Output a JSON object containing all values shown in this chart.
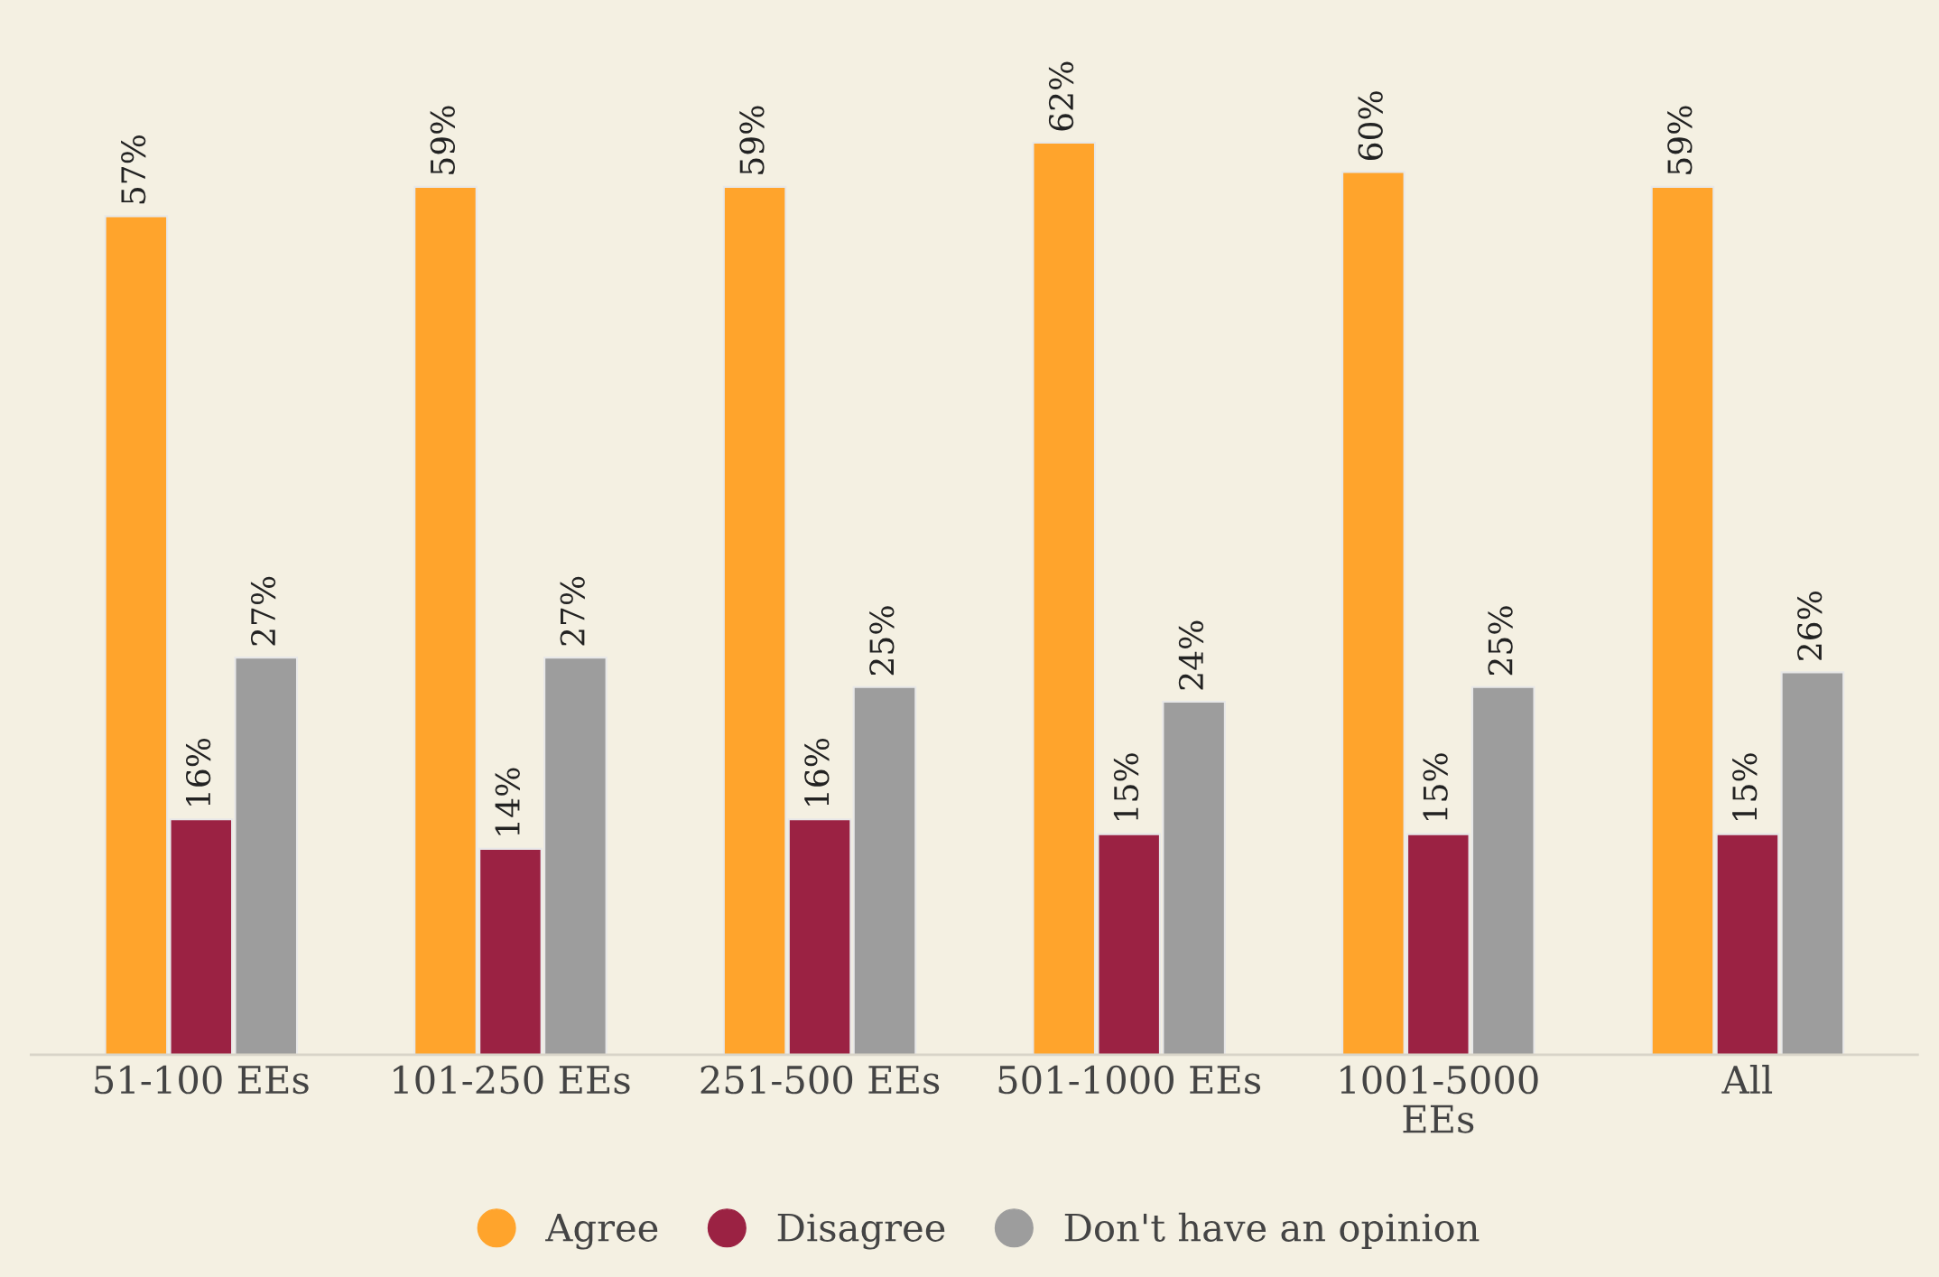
{
  "chart_data": {
    "type": "bar",
    "categories": [
      "51-100 EEs",
      "101-250 EEs",
      "251-500 EEs",
      "501-1000 EEs",
      "1001-5000\nEEs",
      "All"
    ],
    "series": [
      {
        "name": "Agree",
        "color": "#ffa42c",
        "values": [
          57,
          59,
          59,
          62,
          60,
          59
        ],
        "value_labels": [
          "57%",
          "59%",
          "59%",
          "62%",
          "60%",
          "59%"
        ]
      },
      {
        "name": "Disagree",
        "color": "#9b2243",
        "values": [
          16,
          14,
          16,
          15,
          15,
          15
        ],
        "value_labels": [
          "16%",
          "14%",
          "16%",
          "15%",
          "15%",
          "15%"
        ]
      },
      {
        "name": "Don't have an opinion",
        "color": "#9d9d9d",
        "values": [
          27,
          27,
          25,
          24,
          25,
          26
        ],
        "value_labels": [
          "27%",
          "27%",
          "25%",
          "24%",
          "25%",
          "26%"
        ]
      }
    ],
    "legend": "bottom",
    "grid": false
  }
}
